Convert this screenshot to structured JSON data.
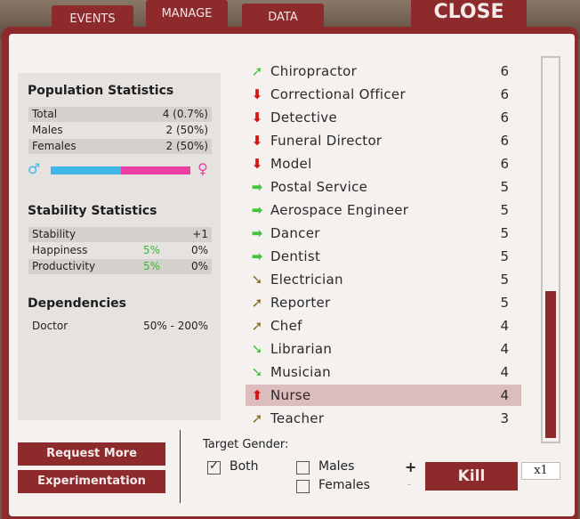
{
  "tabs": {
    "events": "EVENTS",
    "manage": "MANAGE",
    "data": "DATA"
  },
  "close_label": "CLOSE",
  "population": {
    "title": "Population Statistics",
    "rows": [
      {
        "label": "Total",
        "value": "4 (0.7%)"
      },
      {
        "label": "Males",
        "value": "2 (50%)"
      },
      {
        "label": "Females",
        "value": "2 (50%)"
      }
    ],
    "male_symbol": "♂",
    "female_symbol": "♀",
    "male_fraction": 0.5
  },
  "stability": {
    "title": "Stability Statistics",
    "rows": [
      {
        "label": "Stability",
        "mid": "",
        "value": "+1"
      },
      {
        "label": "Happiness",
        "mid": "5%",
        "value": "0%"
      },
      {
        "label": "Productivity",
        "mid": "5%",
        "value": "0%"
      }
    ]
  },
  "dependencies": {
    "title": "Dependencies",
    "rows": [
      {
        "label": "Doctor",
        "value": "50% - 200%"
      }
    ]
  },
  "jobs": [
    {
      "name": "Chiropractor",
      "count": "6",
      "icon": "up-right-arrow-green",
      "glyph": "➚",
      "color": "green"
    },
    {
      "name": "Correctional Officer",
      "count": "6",
      "icon": "down-arrow-red",
      "glyph": "⬇",
      "color": "red"
    },
    {
      "name": "Detective",
      "count": "6",
      "icon": "down-arrow-red",
      "glyph": "⬇",
      "color": "red"
    },
    {
      "name": "Funeral Director",
      "count": "6",
      "icon": "down-arrow-red",
      "glyph": "⬇",
      "color": "red"
    },
    {
      "name": "Model",
      "count": "6",
      "icon": "down-arrow-red",
      "glyph": "⬇",
      "color": "red"
    },
    {
      "name": "Postal Service",
      "count": "5",
      "icon": "right-arrow-green",
      "glyph": "➡",
      "color": "green"
    },
    {
      "name": "Aerospace Engineer",
      "count": "5",
      "icon": "right-arrow-green",
      "glyph": "➡",
      "color": "green"
    },
    {
      "name": "Dancer",
      "count": "5",
      "icon": "right-arrow-green",
      "glyph": "➡",
      "color": "green"
    },
    {
      "name": "Dentist",
      "count": "5",
      "icon": "right-arrow-green",
      "glyph": "➡",
      "color": "green"
    },
    {
      "name": "Electrician",
      "count": "5",
      "icon": "down-right-arrow-olive",
      "glyph": "➘",
      "color": "olive"
    },
    {
      "name": "Reporter",
      "count": "5",
      "icon": "up-right-arrow-olive",
      "glyph": "➚",
      "color": "olive"
    },
    {
      "name": "Chef",
      "count": "4",
      "icon": "up-right-arrow-olive",
      "glyph": "➚",
      "color": "olive"
    },
    {
      "name": "Librarian",
      "count": "4",
      "icon": "down-right-arrow-green",
      "glyph": "➘",
      "color": "green"
    },
    {
      "name": "Musician",
      "count": "4",
      "icon": "down-right-arrow-green",
      "glyph": "➘",
      "color": "green"
    },
    {
      "name": "Nurse",
      "count": "4",
      "icon": "up-arrow-red",
      "glyph": "⬆",
      "color": "red",
      "selected": true
    },
    {
      "name": "Teacher",
      "count": "3",
      "icon": "up-right-arrow-olive",
      "glyph": "➚",
      "color": "olive"
    }
  ],
  "buttons": {
    "request_more": "Request More",
    "experimentation": "Experimentation",
    "kill": "Kill"
  },
  "target_gender": {
    "label": "Target Gender:",
    "both": "Both",
    "both_checked": true,
    "males": "Males",
    "males_checked": false,
    "females": "Females",
    "females_checked": false
  },
  "stepper": {
    "plus": "+",
    "minus": "-"
  },
  "multiplier": "x1",
  "colors": {
    "accent": "#8c2a2c",
    "selected_row": "#dcbcbc",
    "male": "#3fb8e8",
    "female": "#ea3ea2"
  }
}
